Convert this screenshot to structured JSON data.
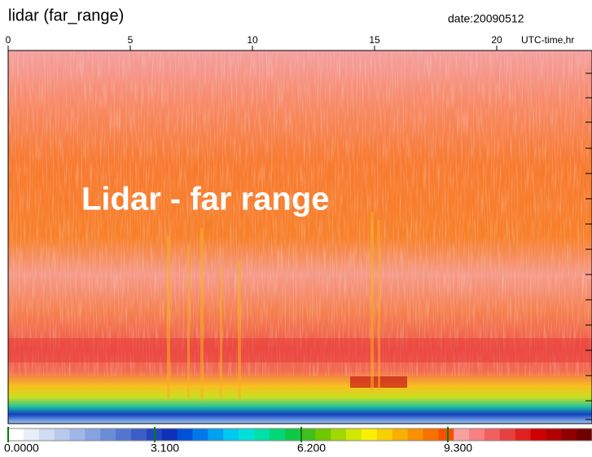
{
  "chart_data": {
    "type": "heatmap",
    "title": "lidar (far_range)",
    "date": "date:20090512",
    "xlabel": "UTC-time,hr",
    "xlim": [
      0,
      24
    ],
    "xticks": [
      0,
      5,
      10,
      15,
      20
    ],
    "annotation": "Lidar - far range",
    "clim": [
      0,
      12.4
    ],
    "cticks": [
      {
        "value": 0,
        "label": "0.0000"
      },
      {
        "value": 3.1,
        "label": "3.100"
      },
      {
        "value": 6.2,
        "label": "6.200"
      },
      {
        "value": 9.3,
        "label": "9.300"
      }
    ],
    "colormap": [
      "#ffffff",
      "#e8eef8",
      "#d0dcf2",
      "#b8caec",
      "#9fb6e6",
      "#86a2e0",
      "#6c8cd8",
      "#5476d0",
      "#3c5ec8",
      "#2444c0",
      "#1030b8",
      "#0050d8",
      "#0078e8",
      "#00a0f0",
      "#00c8f0",
      "#00e0d8",
      "#00e0a8",
      "#00d878",
      "#10c848",
      "#40c020",
      "#70c800",
      "#a0d800",
      "#d0e800",
      "#f8f000",
      "#f8d000",
      "#f8b000",
      "#f89000",
      "#f87000",
      "#f85000",
      "#f8a0a0",
      "#f88080",
      "#f06060",
      "#e84040",
      "#e02020",
      "#d00000",
      "#b00000",
      "#900000",
      "#700000"
    ]
  }
}
